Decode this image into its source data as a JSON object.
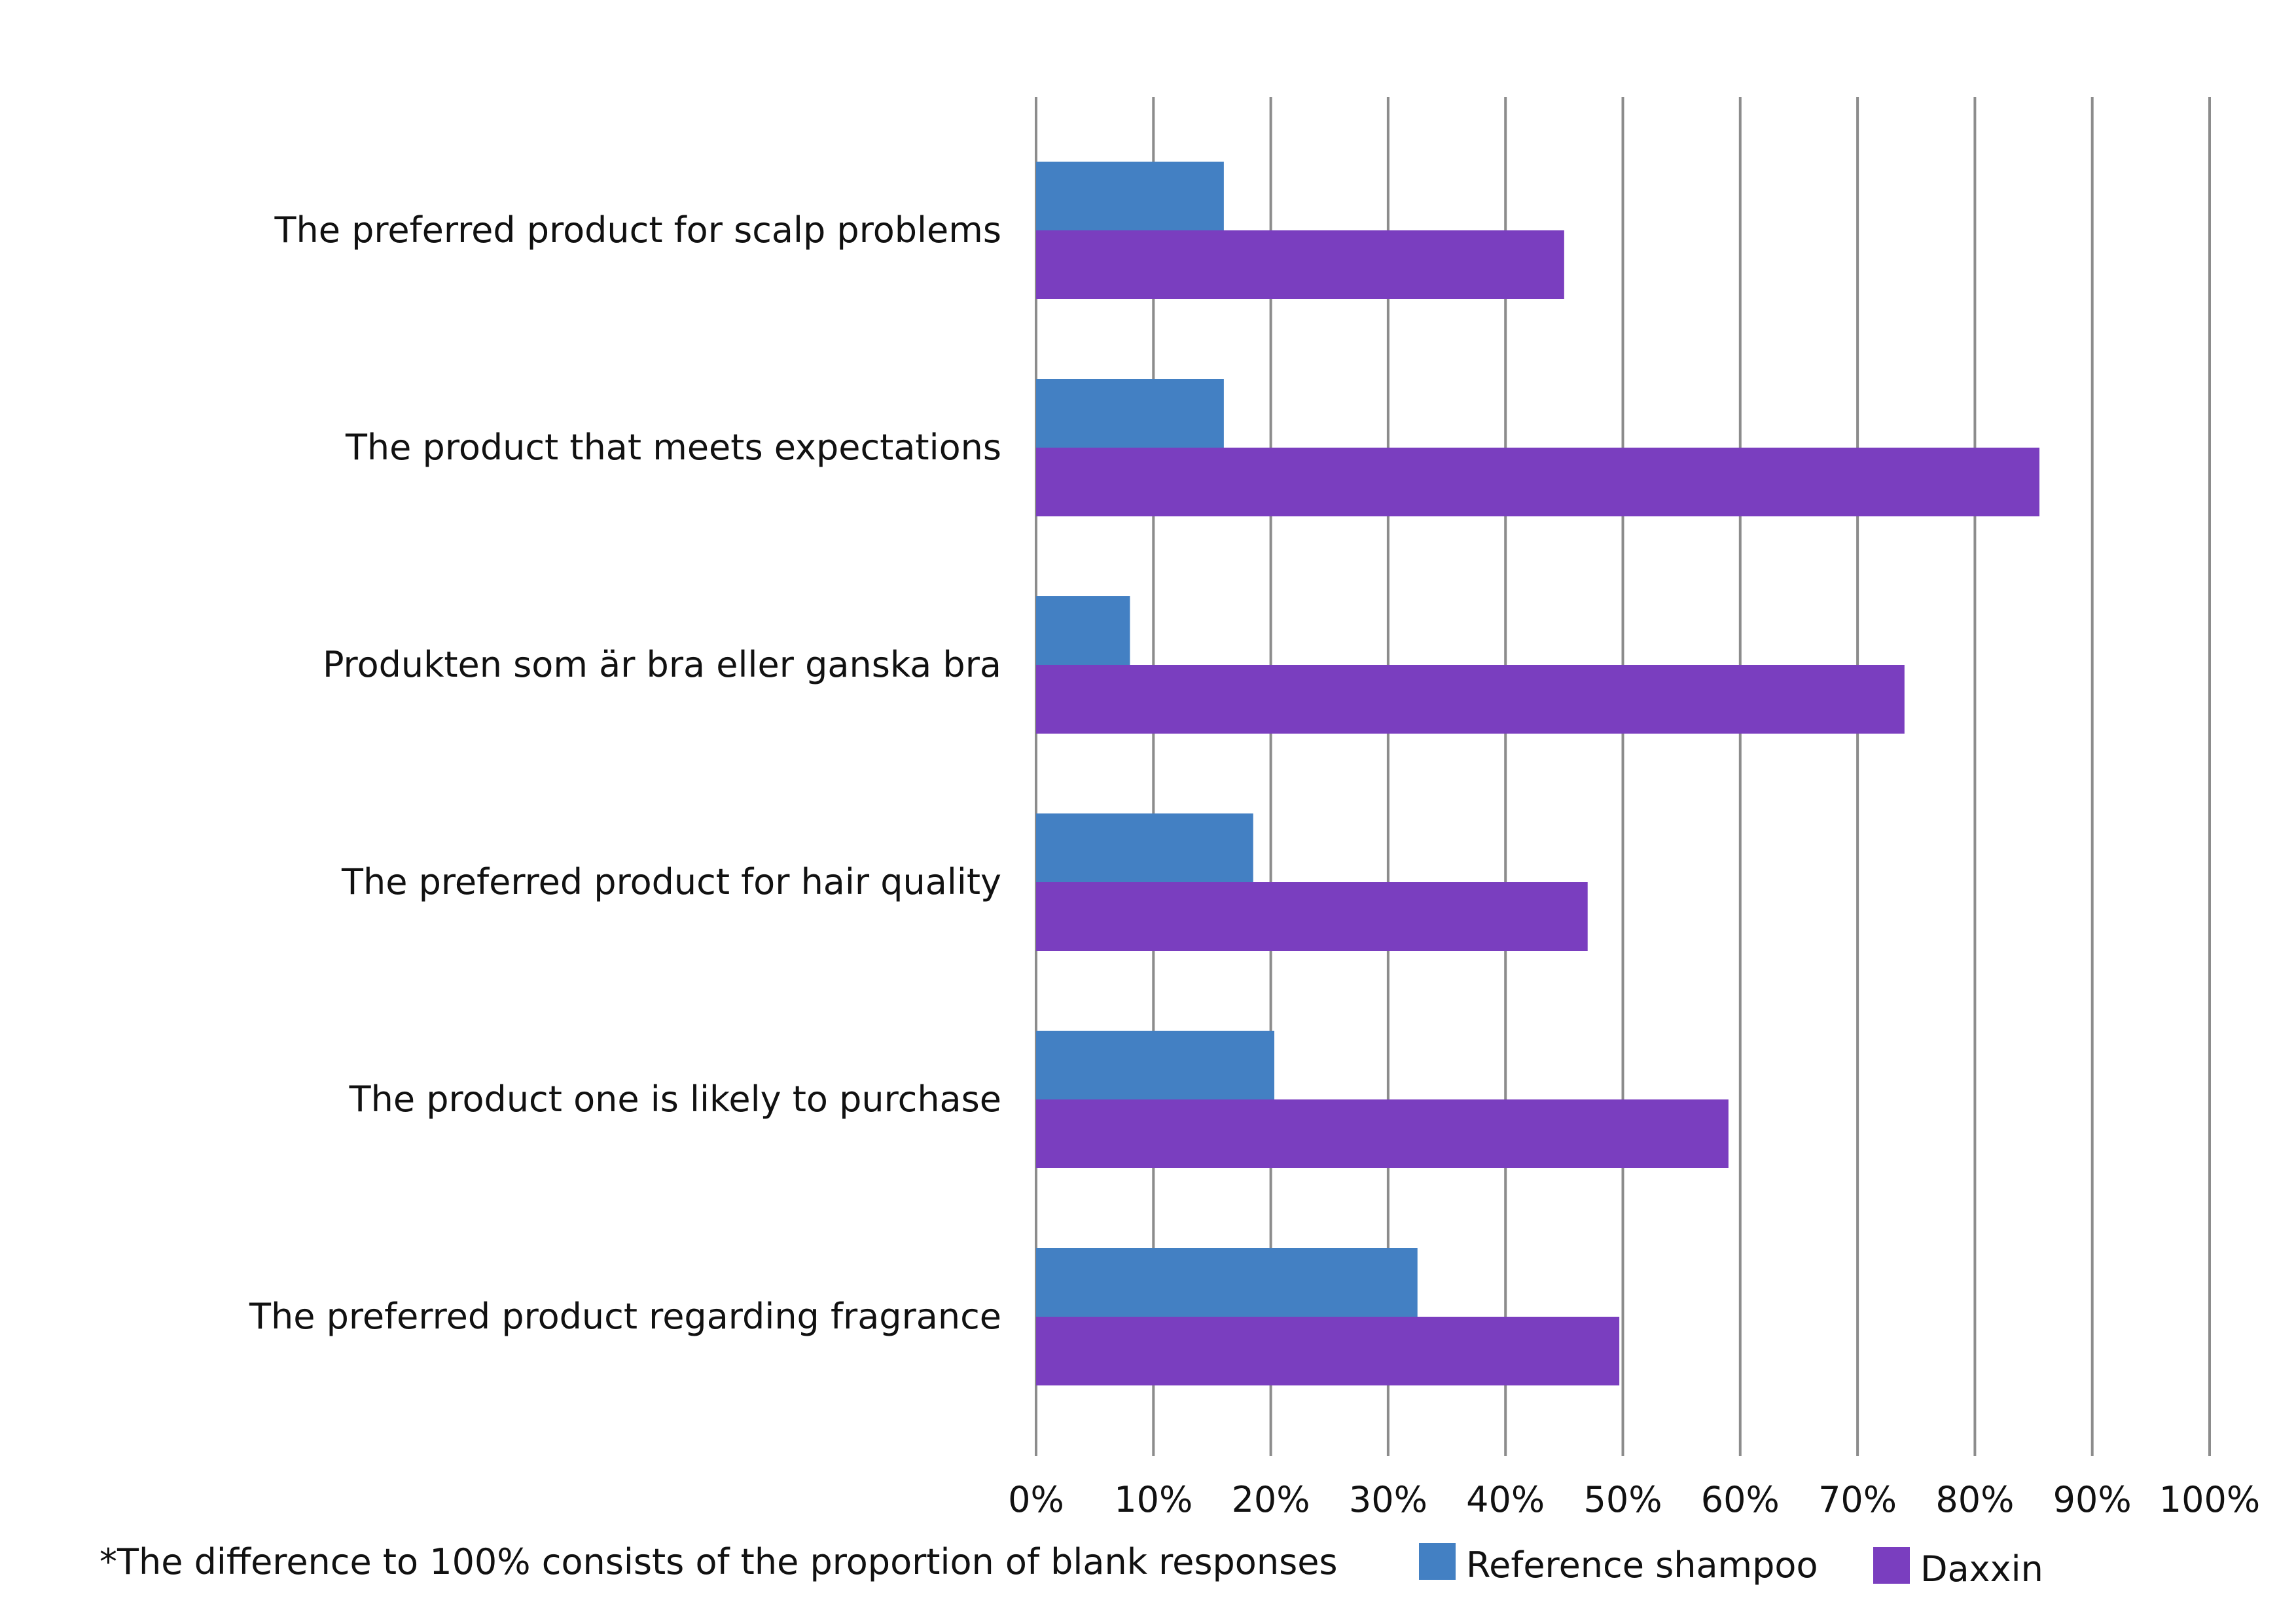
{
  "chart_data": {
    "type": "bar",
    "orientation": "horizontal",
    "categories": [
      "The preferred product for scalp problems",
      "The product that meets expectations",
      "Produkten som är bra eller ganska bra",
      "The preferred product for hair quality",
      "The product one is likely to purchase",
      "The preferred product regarding fragrance"
    ],
    "series": [
      {
        "name": "Reference shampoo",
        "color": "#4380c3",
        "values": [
          16,
          16,
          8,
          18.5,
          20.3,
          32.5
        ]
      },
      {
        "name": "Daxxin",
        "color": "#7a3ebf",
        "values": [
          45,
          85.5,
          74,
          47,
          59,
          49.7
        ]
      }
    ],
    "xlim": [
      0,
      100
    ],
    "x_ticks": [
      "0%",
      "10%",
      "20%",
      "30%",
      "40%",
      "50%",
      "60%",
      "70%",
      "80%",
      "90%",
      "100%"
    ],
    "grid": "vertical",
    "legend": "bottom-right",
    "footnote": "*The difference to 100% consists of the proportion of blank responses",
    "gridline_color": "#8c8c8c"
  }
}
